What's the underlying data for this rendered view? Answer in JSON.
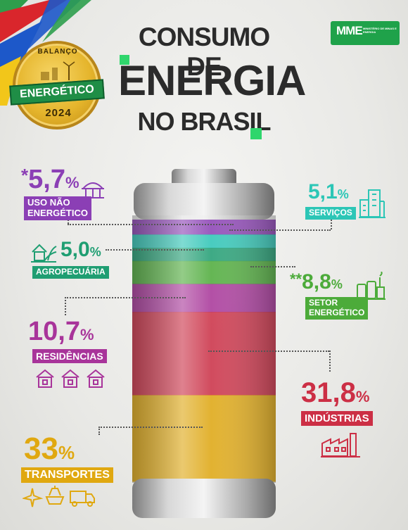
{
  "title": {
    "line1": "CONSUMO DE",
    "line2": "ENERGIA",
    "line3": "NO BRASIL"
  },
  "badge": {
    "top": "BALANÇO",
    "ribbon": "ENERGÉTICO",
    "year": "2024"
  },
  "logo": {
    "mark": "MME",
    "text": "MINISTÉRIO DE MINAS E ENERGIA"
  },
  "colors": {
    "uso": "#8b3fb5",
    "agro": "#1f9e72",
    "res": "#a8349a",
    "trans": "#e0a810",
    "serv": "#2cc6b6",
    "setor": "#4cab3a",
    "ind": "#cc2f45"
  },
  "chart_data": {
    "type": "bar",
    "title": "CONSUMO DE ENERGIA NO BRASIL",
    "categories": [
      "USO NÃO ENERGÉTICO",
      "SERVIÇOS",
      "AGROPECUÁRIA",
      "SETOR ENERGÉTICO",
      "RESIDÊNCIAS",
      "INDÚSTRIAS",
      "TRANSPORTES"
    ],
    "values": [
      5.7,
      5.1,
      5.0,
      8.8,
      10.7,
      31.8,
      33.0
    ],
    "unit": "%"
  },
  "labels": {
    "uso": {
      "prefix": "*",
      "value": "5,7",
      "unit": "%",
      "name": "USO NÃO ENERGÉTICO",
      "name1": "USO NÃO",
      "name2": "ENERGÉTICO",
      "icon": "building-dome-icon"
    },
    "serv": {
      "value": "5,1",
      "unit": "%",
      "name": "SERVIÇOS",
      "icon": "office-buildings-icon"
    },
    "agro": {
      "value": "5,0",
      "unit": "%",
      "name": "AGROPECUÁRIA",
      "icon": "farm-field-icon"
    },
    "setor": {
      "prefix": "**",
      "value": "8,8",
      "unit": "%",
      "name1": "SETOR",
      "name2": "ENERGÉTICO",
      "icon": "power-plant-icon"
    },
    "res": {
      "value": "10,7",
      "unit": "%",
      "name": "RESIDÊNCIAS",
      "icon": "house-icon"
    },
    "ind": {
      "value": "31,8",
      "unit": "%",
      "name": "INDÚSTRIAS",
      "icon": "factory-icon"
    },
    "trans": {
      "value": "33",
      "unit": "%",
      "name": "TRANSPORTES",
      "icon": "transport-icon"
    }
  }
}
